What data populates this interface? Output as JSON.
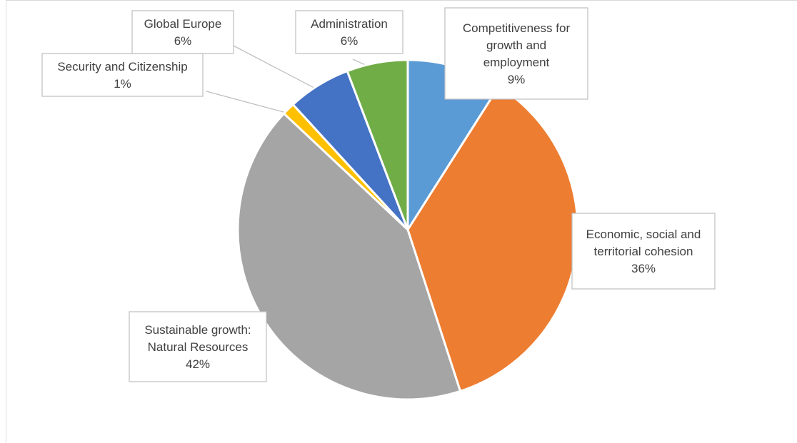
{
  "chart_data": {
    "type": "pie",
    "slices": [
      {
        "label_lines": [
          "Competitiveness for",
          "growth and",
          "employment"
        ],
        "percent_label": "9%",
        "value": 9,
        "color": "#5b9bd5"
      },
      {
        "label_lines": [
          "Economic, social and",
          "territorial cohesion"
        ],
        "percent_label": "36%",
        "value": 36,
        "color": "#ed7d31"
      },
      {
        "label_lines": [
          "Sustainable growth:",
          "Natural Resources"
        ],
        "percent_label": "42%",
        "value": 42,
        "color": "#a5a5a5"
      },
      {
        "label_lines": [
          "Security and Citizenship"
        ],
        "percent_label": "1%",
        "value": 1.2,
        "color": "#ffc000"
      },
      {
        "label_lines": [
          "Global Europe"
        ],
        "percent_label": "6%",
        "value": 6,
        "color": "#4472c4"
      },
      {
        "label_lines": [
          "Administration"
        ],
        "percent_label": "6%",
        "value": 5.8,
        "color": "#70ad47"
      }
    ],
    "start_angle_deg": 0,
    "direction": "clockwise",
    "legend": "none",
    "data_labels": "callouts"
  }
}
